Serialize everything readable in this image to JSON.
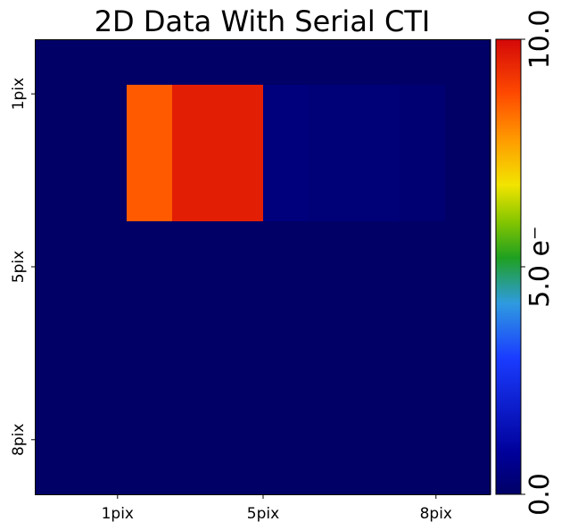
{
  "chart_data": {
    "type": "heatmap",
    "title": "2D Data With Serial CTI",
    "rows": 10,
    "cols": 10,
    "x_ticks": [
      {
        "pos": 1,
        "label": "1pix"
      },
      {
        "pos": 5,
        "label": "5pix"
      },
      {
        "pos": 8,
        "label": "8pix"
      }
    ],
    "y_ticks": [
      {
        "pos": 1,
        "label": "1pix"
      },
      {
        "pos": 5,
        "label": "5pix"
      },
      {
        "pos": 8,
        "label": "8pix"
      }
    ],
    "values": [
      [
        0,
        0,
        0,
        0,
        0,
        0,
        0,
        0,
        0,
        0
      ],
      [
        0,
        0,
        8.6,
        9.6,
        9.6,
        0.4,
        0.3,
        0.3,
        0.2,
        0
      ],
      [
        0,
        0,
        8.6,
        9.6,
        9.6,
        0.4,
        0.3,
        0.3,
        0.2,
        0
      ],
      [
        0,
        0,
        8.6,
        9.6,
        9.6,
        0.4,
        0.3,
        0.3,
        0.2,
        0
      ],
      [
        0,
        0,
        0,
        0,
        0,
        0,
        0,
        0,
        0,
        0
      ],
      [
        0,
        0,
        0,
        0,
        0,
        0,
        0,
        0,
        0,
        0
      ],
      [
        0,
        0,
        0,
        0,
        0,
        0,
        0,
        0,
        0,
        0
      ],
      [
        0,
        0,
        0,
        0,
        0,
        0,
        0,
        0,
        0,
        0
      ],
      [
        0,
        0,
        0,
        0,
        0,
        0,
        0,
        0,
        0,
        0
      ],
      [
        0,
        0,
        0,
        0,
        0,
        0,
        0,
        0,
        0,
        0
      ]
    ],
    "colorbar": {
      "min": 0.0,
      "max": 10.0,
      "min_label": "0.0",
      "mid_label": "5.0 e⁻",
      "max_label": "10.0",
      "colormap": "jet-like",
      "stops": [
        "#000066",
        "#00009a",
        "#1a3cff",
        "#2f9be0",
        "#1fa020",
        "#86c600",
        "#f2e400",
        "#ff9a00",
        "#ff4a00",
        "#d40808"
      ]
    },
    "grid": false,
    "legend": "colorbar-right"
  }
}
